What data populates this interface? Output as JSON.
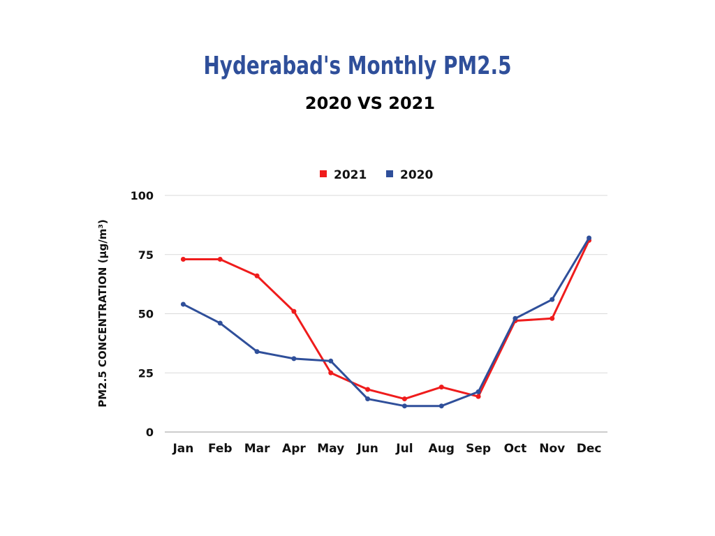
{
  "chart_data": {
    "type": "line",
    "title": "Hyderabad's Monthly PM2.5",
    "subtitle": "2020 VS 2021",
    "ylabel": "PM2.5 CONCENTRATION (µg/m³)",
    "xlabel": "",
    "categories": [
      "Jan",
      "Feb",
      "Mar",
      "Apr",
      "May",
      "Jun",
      "Jul",
      "Aug",
      "Sep",
      "Oct",
      "Nov",
      "Dec"
    ],
    "ylim": [
      0,
      100
    ],
    "yticks": [
      "0",
      "25",
      "50",
      "75",
      "100"
    ],
    "grid": true,
    "legend_position": "top-center",
    "series": [
      {
        "name": "2021",
        "color": "#ef1c1c",
        "values": [
          73,
          73,
          66,
          51,
          25,
          18,
          14,
          19,
          15,
          47,
          48,
          81
        ]
      },
      {
        "name": "2020",
        "color": "#2f4f9a",
        "values": [
          54,
          46,
          34,
          31,
          30,
          14,
          11,
          11,
          17,
          48,
          56,
          82
        ]
      }
    ]
  }
}
